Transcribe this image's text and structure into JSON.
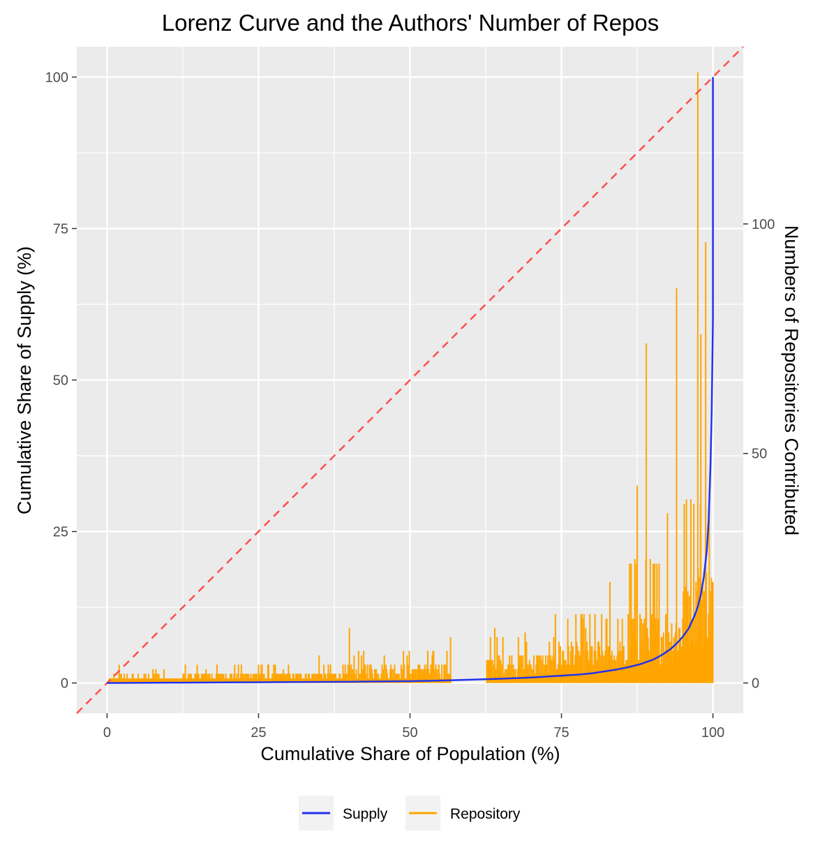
{
  "chart_data": {
    "type": "line",
    "title": "Lorenz Curve and the Authors' Number of Repos",
    "xlabel": "Cumulative Share of Population (%)",
    "ylabel": "Cumulative Share of Supply (%)",
    "ylabel_right": "Numbers of Repositories Contributed",
    "xlim": [
      -5,
      105
    ],
    "ylim": [
      -5,
      105
    ],
    "ylim_right": [
      -6.6,
      138.6
    ],
    "x_ticks": [
      "0",
      "25",
      "50",
      "75",
      "100"
    ],
    "y_ticks": [
      "0",
      "25",
      "50",
      "75",
      "100"
    ],
    "y_ticks_right": [
      "0",
      "50",
      "100"
    ],
    "grid": true,
    "legend_position": "bottom",
    "colors": {
      "supply": "#2233ee",
      "repository": "#ffa500",
      "equality": "#ff4d4d",
      "panel": "#ebebeb",
      "grid": "#ffffff"
    },
    "series": [
      {
        "name": "Supply",
        "axis": "left",
        "x": [
          0,
          10,
          20,
          30,
          40,
          50,
          55,
          60,
          65,
          70,
          75,
          78,
          80,
          82,
          84,
          86,
          88,
          90,
          91,
          92,
          93,
          94,
          95,
          96,
          97,
          97.5,
          98,
          98.5,
          99,
          99.3,
          99.6,
          99.8,
          100,
          100
        ],
        "y": [
          0,
          0.05,
          0.1,
          0.15,
          0.2,
          0.3,
          0.4,
          0.55,
          0.7,
          0.9,
          1.2,
          1.4,
          1.6,
          1.9,
          2.2,
          2.6,
          3.1,
          3.8,
          4.3,
          4.9,
          5.6,
          6.5,
          7.6,
          9.0,
          11.2,
          12.6,
          14.6,
          17.5,
          22.0,
          27.0,
          36.0,
          45.0,
          60.0,
          100.0
        ]
      },
      {
        "name": "Repository",
        "axis": "right",
        "x": [
          89,
          94,
          97.5,
          98.8,
          87.5,
          98,
          92.5,
          83,
          74,
          79,
          64,
          69,
          56.7,
          40,
          35,
          25,
          2
        ],
        "y": [
          74,
          86,
          133,
          96,
          43,
          76,
          37,
          22,
          15,
          12,
          12,
          11,
          10,
          12,
          6,
          4,
          4
        ]
      },
      {
        "name": "Equality",
        "axis": "left",
        "x": [
          -5,
          105
        ],
        "y": [
          -5,
          105
        ]
      }
    ]
  },
  "legend": {
    "items": [
      {
        "label": "Supply",
        "color": "#2233ee"
      },
      {
        "label": "Repository",
        "color": "#ffa500"
      }
    ]
  }
}
